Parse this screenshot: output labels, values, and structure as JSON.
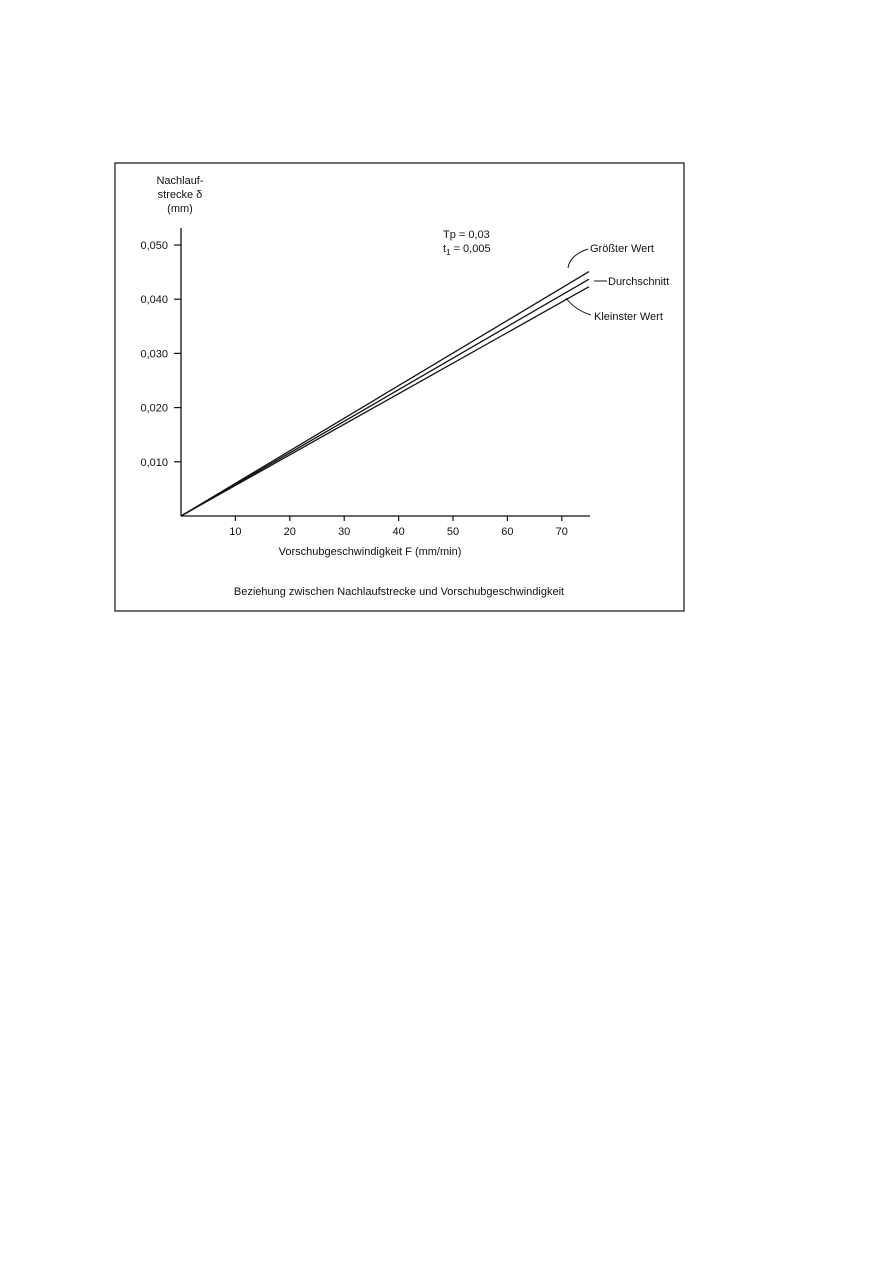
{
  "chart_data": {
    "type": "line",
    "title": "",
    "caption": "Beziehung zwischen Nachlaufstrecke und Vorschubgeschwindigkeit",
    "ylabel_lines": [
      "Nachlauf-",
      "strecke δ",
      "(mm)"
    ],
    "xlabel": "Vorschubgeschwindigkeit F (mm/min)",
    "xlim": [
      0,
      75
    ],
    "ylim": [
      0,
      0.05
    ],
    "xticks": [
      10,
      20,
      30,
      40,
      50,
      60,
      70
    ],
    "xtick_labels": [
      "10",
      "20",
      "30",
      "40",
      "50",
      "60",
      "70"
    ],
    "yticks": [
      0.01,
      0.02,
      0.03,
      0.04,
      0.05
    ],
    "ytick_labels": [
      "0,010",
      "0,020",
      "0,030",
      "0,040",
      "0,050"
    ],
    "grid": false,
    "annotation": {
      "line1": "Tp = 0,03",
      "line2_prefix": "t",
      "line2_sub": "1",
      "line2_suffix": " = 0,005"
    },
    "series": [
      {
        "name": "Größter Wert",
        "x": [
          0,
          75
        ],
        "y": [
          0,
          0.0451
        ]
      },
      {
        "name": "Durchschnitt",
        "x": [
          0,
          75
        ],
        "y": [
          0,
          0.0437
        ]
      },
      {
        "name": "Kleinster Wert",
        "x": [
          0,
          75
        ],
        "y": [
          0,
          0.0423
        ]
      }
    ],
    "colors": {
      "line": "#111111",
      "background": "#ffffff"
    }
  }
}
